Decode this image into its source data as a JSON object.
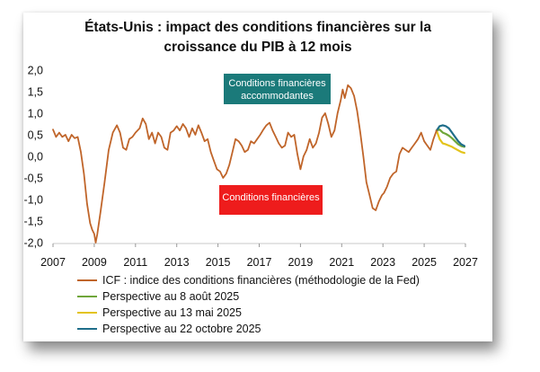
{
  "chart_data": {
    "type": "line",
    "title_line1": "États-Unis : impact des conditions financières sur la",
    "title_line2": "croissance du PIB à 12 mois",
    "ylim": [
      -2.0,
      2.0
    ],
    "yticks": [
      "2,0",
      "1,5",
      "1,0",
      "0,5",
      "0,0",
      "-0,5",
      "-1,0",
      "-1,5",
      "-2,0"
    ],
    "ytick_values": [
      2.0,
      1.5,
      1.0,
      0.5,
      0.0,
      -0.5,
      -1.0,
      -1.5,
      -2.0
    ],
    "xlim": [
      2007,
      2027
    ],
    "xticks": [
      2007,
      2009,
      2011,
      2013,
      2015,
      2017,
      2019,
      2021,
      2023,
      2025,
      2027
    ],
    "annotations": {
      "accommodantes": {
        "text_line1": "Conditions financières",
        "text_line2": "accommodantes",
        "color": "#1b7a7a"
      },
      "restrictives": {
        "text": "Conditions financières",
        "color": "#ee1c1c"
      }
    },
    "series": [
      {
        "name": "ICF : indice des conditions financières (méthodologie de la Fed)",
        "color": "#c0652a",
        "x": [
          2007.0,
          2007.15,
          2007.3,
          2007.45,
          2007.6,
          2007.75,
          2007.9,
          2008.05,
          2008.2,
          2008.35,
          2008.5,
          2008.65,
          2008.8,
          2008.9,
          2009.0,
          2009.07,
          2009.15,
          2009.3,
          2009.5,
          2009.7,
          2009.9,
          2010.1,
          2010.25,
          2010.4,
          2010.55,
          2010.7,
          2010.85,
          2011.0,
          2011.2,
          2011.35,
          2011.5,
          2011.65,
          2011.8,
          2011.95,
          2012.1,
          2012.25,
          2012.4,
          2012.55,
          2012.7,
          2012.85,
          2013.0,
          2013.15,
          2013.3,
          2013.45,
          2013.6,
          2013.75,
          2013.9,
          2014.05,
          2014.2,
          2014.35,
          2014.5,
          2014.65,
          2014.8,
          2014.95,
          2015.1,
          2015.25,
          2015.4,
          2015.55,
          2015.7,
          2015.85,
          2016.0,
          2016.15,
          2016.3,
          2016.45,
          2016.6,
          2016.75,
          2016.9,
          2017.05,
          2017.2,
          2017.35,
          2017.5,
          2017.65,
          2017.8,
          2017.95,
          2018.1,
          2018.25,
          2018.4,
          2018.55,
          2018.7,
          2018.85,
          2019.0,
          2019.15,
          2019.3,
          2019.45,
          2019.6,
          2019.75,
          2019.9,
          2020.05,
          2020.2,
          2020.35,
          2020.5,
          2020.65,
          2020.8,
          2020.95,
          2021.05,
          2021.15,
          2021.3,
          2021.45,
          2021.6,
          2021.75,
          2021.9,
          2022.05,
          2022.2,
          2022.35,
          2022.5,
          2022.65,
          2022.8,
          2022.95,
          2023.05,
          2023.2,
          2023.35,
          2023.5,
          2023.65,
          2023.8,
          2023.95,
          2024.1,
          2024.25,
          2024.4,
          2024.55,
          2024.7,
          2024.85,
          2025.0,
          2025.15,
          2025.3,
          2025.45,
          2025.6
        ],
        "y": [
          0.62,
          0.45,
          0.55,
          0.45,
          0.5,
          0.35,
          0.5,
          0.42,
          0.45,
          0.1,
          -0.4,
          -1.1,
          -1.55,
          -1.7,
          -1.8,
          -2.0,
          -1.8,
          -1.3,
          -0.6,
          0.15,
          0.55,
          0.72,
          0.55,
          0.2,
          0.15,
          0.4,
          0.45,
          0.55,
          0.65,
          0.88,
          0.75,
          0.4,
          0.55,
          0.3,
          0.55,
          0.45,
          0.2,
          0.15,
          0.55,
          0.6,
          0.7,
          0.6,
          0.75,
          0.65,
          0.45,
          0.65,
          0.5,
          0.72,
          0.55,
          0.35,
          0.4,
          0.1,
          -0.1,
          -0.3,
          -0.35,
          -0.5,
          -0.4,
          -0.2,
          0.1,
          0.4,
          0.35,
          0.25,
          0.1,
          0.15,
          0.35,
          0.3,
          0.4,
          0.5,
          0.62,
          0.72,
          0.78,
          0.6,
          0.45,
          0.3,
          0.2,
          0.25,
          0.55,
          0.45,
          0.5,
          0.05,
          -0.3,
          0.0,
          0.15,
          0.4,
          0.2,
          0.3,
          0.55,
          0.9,
          1.0,
          0.75,
          0.45,
          0.6,
          1.0,
          1.3,
          1.55,
          1.35,
          1.65,
          1.58,
          1.4,
          1.05,
          0.55,
          0.0,
          -0.6,
          -0.9,
          -1.2,
          -1.25,
          -1.05,
          -0.9,
          -0.85,
          -0.7,
          -0.5,
          -0.4,
          -0.35,
          0.05,
          0.2,
          0.15,
          0.1,
          0.2,
          0.3,
          0.4,
          0.55,
          0.35,
          0.25,
          0.15,
          0.4,
          0.6
        ]
      },
      {
        "name": "Perspective au 8 août 2025",
        "color": "#6fa63a",
        "x": [
          2025.6,
          2025.75,
          2025.9,
          2026.05,
          2026.2,
          2026.35,
          2026.5,
          2026.65,
          2026.8,
          2026.95
        ],
        "y": [
          0.6,
          0.62,
          0.55,
          0.52,
          0.48,
          0.42,
          0.35,
          0.28,
          0.24,
          0.22
        ]
      },
      {
        "name": "Perspective au 13 mai 2025",
        "color": "#e3c31b",
        "x": [
          2025.6,
          2025.75,
          2025.9,
          2026.05,
          2026.2,
          2026.35,
          2026.5,
          2026.65,
          2026.8,
          2026.95
        ],
        "y": [
          0.6,
          0.4,
          0.3,
          0.28,
          0.25,
          0.22,
          0.18,
          0.14,
          0.1,
          0.08
        ]
      },
      {
        "name": "Perspective au 22 octobre 2025",
        "color": "#1f6e8a",
        "x": [
          2025.6,
          2025.75,
          2025.9,
          2026.05,
          2026.2,
          2026.35,
          2026.5,
          2026.65,
          2026.8,
          2026.95
        ],
        "y": [
          0.6,
          0.7,
          0.72,
          0.7,
          0.65,
          0.55,
          0.45,
          0.35,
          0.28,
          0.24
        ]
      }
    ]
  }
}
